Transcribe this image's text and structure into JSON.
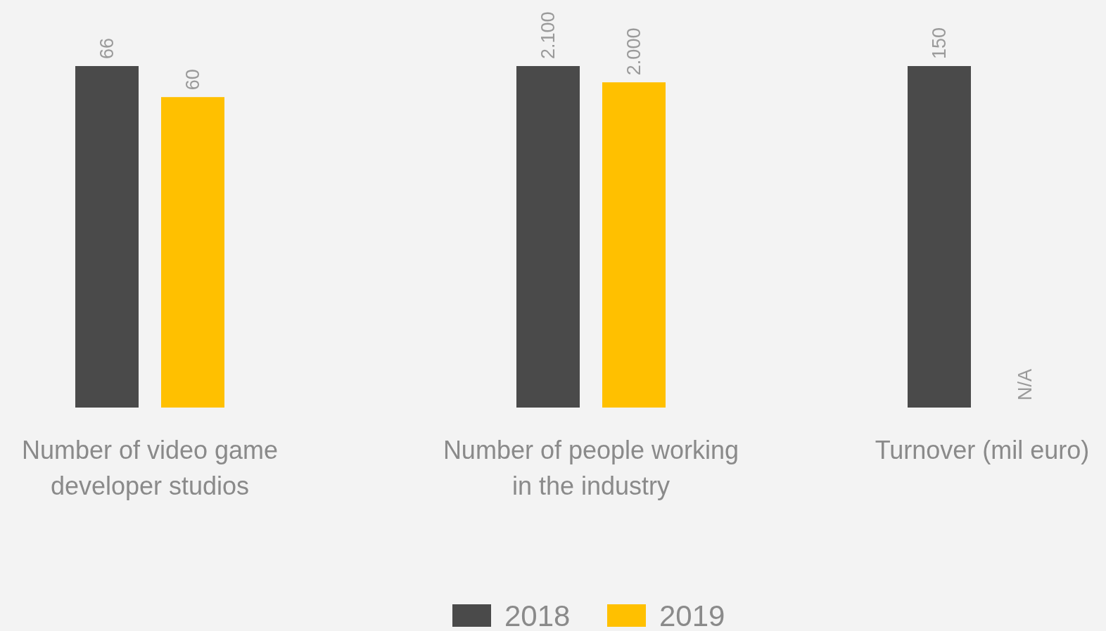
{
  "chart_data": [
    {
      "type": "bar",
      "categories": [
        "Number of video game developer studios"
      ],
      "series": [
        {
          "color": "#4a4a4a",
          "values": [
            66
          ],
          "value_labels": [
            "66"
          ]
        },
        {
          "color": "#ffc000",
          "values": [
            60
          ],
          "value_labels": [
            "60"
          ]
        }
      ]
    },
    {
      "type": "bar",
      "categories": [
        "Number of people working in the industry"
      ],
      "legend": "bottom",
      "series": [
        {
          "name": "2018",
          "color": "#4a4a4a",
          "values": [
            2100
          ],
          "value_labels": [
            "2.100"
          ]
        },
        {
          "name": "2019",
          "color": "#ffc000",
          "values": [
            2000
          ],
          "value_labels": [
            "2.000"
          ]
        }
      ]
    },
    {
      "type": "bar",
      "categories": [
        "Turnover (mil euro)"
      ],
      "series": [
        {
          "color": "#4a4a4a",
          "values": [
            150
          ],
          "value_labels": [
            "150"
          ]
        },
        {
          "values": [
            null
          ],
          "value_labels": [
            "N/A"
          ]
        }
      ]
    }
  ]
}
